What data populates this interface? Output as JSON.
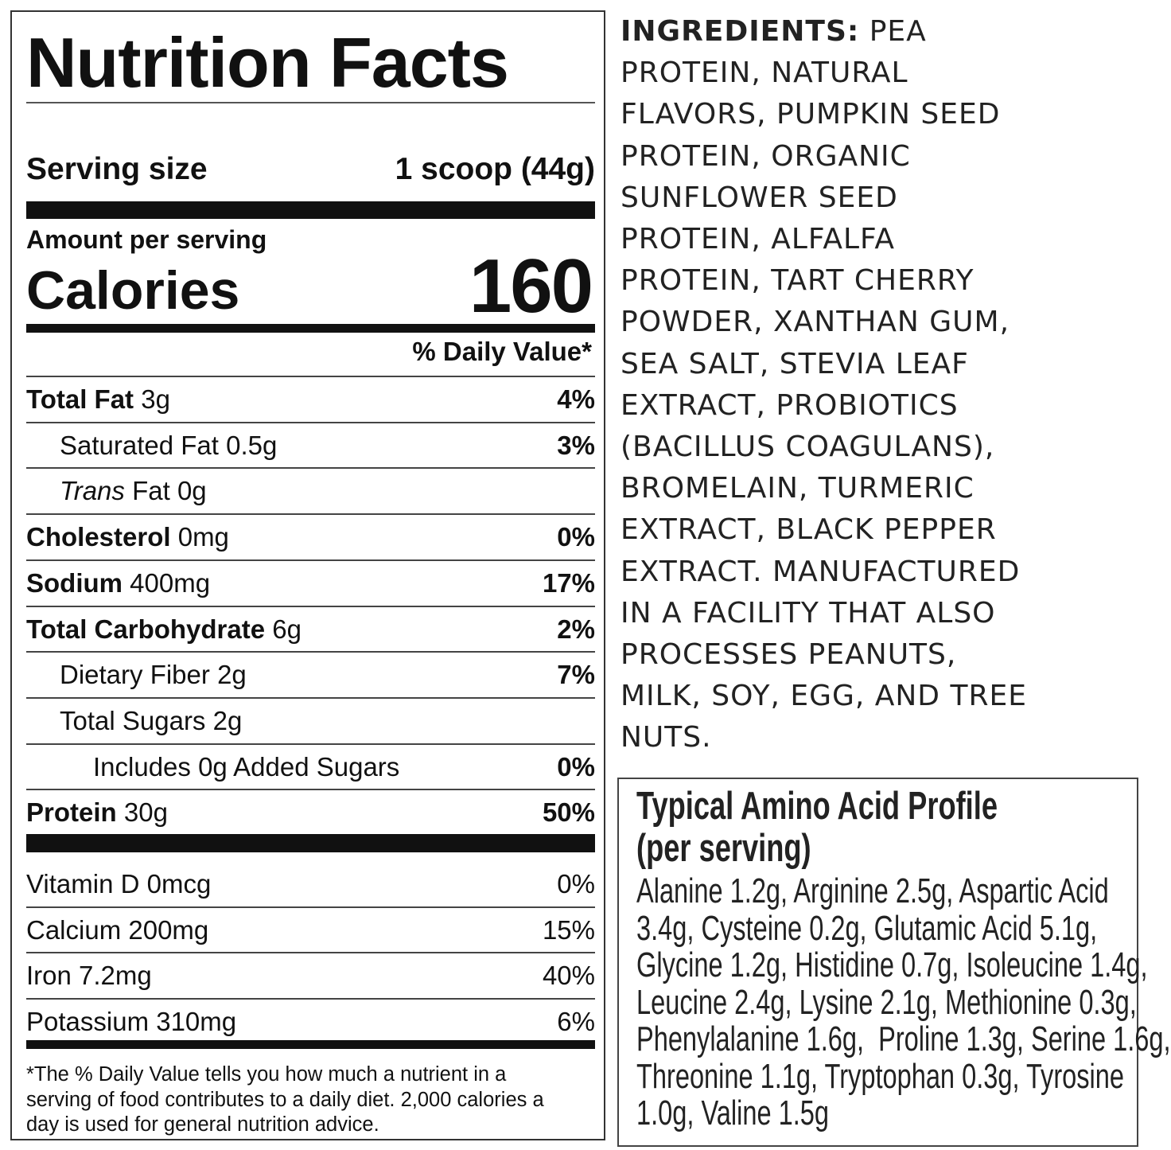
{
  "label": {
    "title": "Nutrition Facts",
    "serving_size_label": "Serving size",
    "serving_size_value": "1 scoop (44g)",
    "amount_per_serving": "Amount per serving",
    "calories_label": "Calories",
    "calories_value": "160",
    "daily_value_header": "% Daily Value*",
    "nutrients": [
      {
        "name": "Total Fat",
        "amount": "3g",
        "dv": "4%"
      },
      {
        "name": "Saturated Fat",
        "amount": "0.5g",
        "dv": "3%"
      },
      {
        "name": "Trans",
        "name_suffix": "Fat",
        "amount": "0g",
        "dv": ""
      },
      {
        "name": "Cholesterol",
        "amount": "0mg",
        "dv": "0%"
      },
      {
        "name": "Sodium",
        "amount": "400mg",
        "dv": "17%"
      },
      {
        "name": "Total Carbohydrate",
        "amount": "6g",
        "dv": "2%"
      },
      {
        "name": "Dietary Fiber",
        "amount": "2g",
        "dv": "7%"
      },
      {
        "name": "Total Sugars",
        "amount": "2g",
        "dv": ""
      },
      {
        "name": "Includes 0g Added Sugars",
        "amount": "",
        "dv": "0%"
      },
      {
        "name": "Protein",
        "amount": "30g",
        "dv": "50%"
      }
    ],
    "vitamins": [
      {
        "text": "Vitamin D 0mcg",
        "dv": "0%"
      },
      {
        "text": "Calcium 200mg",
        "dv": "15%"
      },
      {
        "text": "Iron 7.2mg",
        "dv": "40%"
      },
      {
        "text": "Potassium 310mg",
        "dv": "6%"
      }
    ],
    "footnote_lines": [
      "*The % Daily Value tells you how much a nutrient in a",
      "serving of food contributes to a daily diet. 2,000 calories a",
      "day is used for general nutrition advice."
    ]
  },
  "ingredients": {
    "heading": "INGREDIENTS:",
    "lines": [
      " PEA",
      "PROTEIN, NATURAL",
      "FLAVORS, PUMPKIN SEED",
      "PROTEIN, ORGANIC",
      "SUNFLOWER SEED",
      "PROTEIN, ALFALFA",
      "PROTEIN, TART CHERRY",
      "POWDER, XANTHAN GUM,",
      "SEA SALT, STEVIA LEAF",
      "EXTRACT, PROBIOTICS",
      "(BACILLUS COAGULANS),",
      "BROMELAIN, TURMERIC",
      "EXTRACT, BLACK PEPPER",
      "EXTRACT. MANUFACTURED",
      "IN A FACILITY THAT ALSO",
      "PROCESSES PEANUTS,",
      "MILK, SOY, EGG, AND TREE",
      "NUTS."
    ]
  },
  "amino": {
    "title_lines": [
      "Typical Amino Acid Profile",
      "(per serving)"
    ],
    "body_lines": [
      "Alanine 1.2g, Arginine 2.5g, Aspartic Acid",
      "3.4g, Cysteine 0.2g, Glutamic Acid 5.1g,",
      "Glycine 1.2g, Histidine 0.7g, Isoleucine 1.4g,",
      "Leucine 2.4g, Lysine 2.1g, Methionine 0.3g,",
      "Phenylalanine 1.6g,  Proline 1.3g, Serine 1.6g,",
      "Threonine 1.1g, Tryptophan 0.3g, Tyrosine",
      "1.0g, Valine 1.5g"
    ]
  }
}
